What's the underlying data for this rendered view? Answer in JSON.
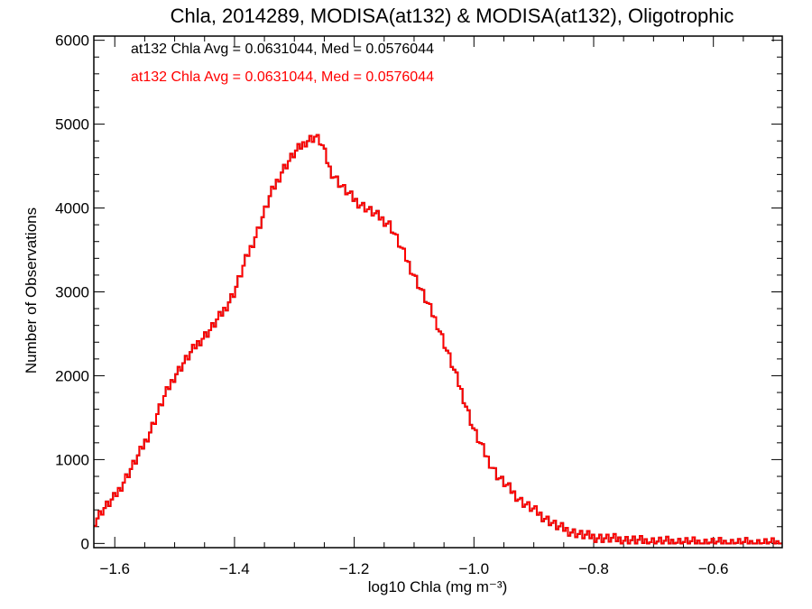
{
  "chart_data": {
    "type": "line",
    "style": "histogram-step",
    "title": "Chla, 2014289, MODISA(at132) & MODISA(at132), Oligotrophic",
    "xlabel": "log10 Chla (mg m⁻³)",
    "ylabel": "Number of Observations",
    "xlim": [
      -1.635,
      -0.485
    ],
    "ylim": [
      -50,
      6050
    ],
    "xticks": [
      -1.6,
      -1.4,
      -1.2,
      -1.0,
      -0.8,
      -0.6
    ],
    "xtick_labels": [
      "−1.6",
      "−1.4",
      "−1.2",
      "−1.0",
      "−0.8",
      "−0.6"
    ],
    "yticks": [
      0,
      1000,
      2000,
      3000,
      4000,
      5000,
      6000
    ],
    "ytick_labels": [
      "0",
      "1000",
      "2000",
      "3000",
      "4000",
      "5000",
      "6000"
    ],
    "annotations": [
      {
        "text": "at132 Chla Avg = 0.0631044, Med = 0.0576044",
        "color": "#000000"
      },
      {
        "text": "at132 Chla Avg = 0.0631044, Med = 0.0576044",
        "color": "#ff0000"
      }
    ],
    "series": [
      {
        "color": "#000000",
        "line": "step"
      },
      {
        "color": "#ff0000",
        "line": "step"
      }
    ],
    "x": [
      -1.635,
      -1.62,
      -1.6,
      -1.58,
      -1.56,
      -1.54,
      -1.52,
      -1.5,
      -1.48,
      -1.46,
      -1.44,
      -1.42,
      -1.4,
      -1.38,
      -1.36,
      -1.34,
      -1.32,
      -1.3,
      -1.28,
      -1.265,
      -1.255,
      -1.24,
      -1.22,
      -1.2,
      -1.18,
      -1.16,
      -1.14,
      -1.12,
      -1.1,
      -1.08,
      -1.06,
      -1.04,
      -1.02,
      -1.0,
      -0.98,
      -0.96,
      -0.94,
      -0.92,
      -0.9,
      -0.88,
      -0.86,
      -0.84,
      -0.82,
      -0.8,
      -0.78,
      -0.76,
      -0.74,
      -0.72,
      -0.7,
      -0.68,
      -0.66,
      -0.64,
      -0.62,
      -0.6,
      -0.58,
      -0.56,
      -0.54,
      -0.52,
      -0.5,
      -0.485
    ],
    "y": [
      250,
      400,
      550,
      800,
      1050,
      1350,
      1700,
      2000,
      2200,
      2400,
      2550,
      2750,
      3000,
      3400,
      3750,
      4150,
      4450,
      4650,
      4800,
      4850,
      4780,
      4450,
      4250,
      4100,
      4000,
      3900,
      3800,
      3500,
      3200,
      2900,
      2600,
      2200,
      1800,
      1350,
      1050,
      800,
      650,
      500,
      400,
      300,
      200,
      150,
      100,
      80,
      60,
      50,
      40,
      30,
      25,
      20,
      20,
      15,
      12,
      10,
      8,
      6,
      5,
      4,
      3,
      3
    ]
  }
}
